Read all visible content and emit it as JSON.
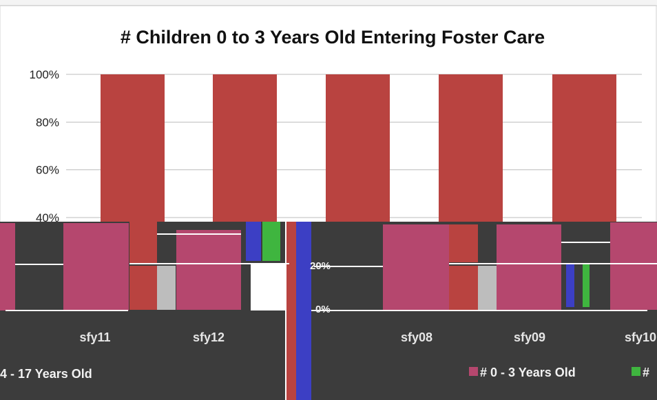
{
  "chart_data": {
    "type": "bar",
    "stacked": true,
    "percent_stacked": true,
    "title": "# Children 0 to 3 Years Old Entering Foster Care",
    "xlabel": "",
    "ylabel": "",
    "ylim": [
      0,
      100
    ],
    "y_ticks": [
      "100%",
      "80%",
      "60%",
      "40%"
    ],
    "grid": true,
    "series_colors": [
      "#b94340",
      "#b5476e",
      "#3fb53f"
    ],
    "main_bars": [
      100,
      100,
      100,
      100,
      100
    ],
    "glitch_layer": {
      "left_categories": [
        "sfy11",
        "sfy12"
      ],
      "right_categories": [
        "sfy08",
        "sfy09",
        "sfy10"
      ],
      "legend_left": "4 - 17 Years Old",
      "legend_right": [
        "# 0 - 3 Years Old",
        "#"
      ],
      "small_ticks": [
        "20%",
        "0%"
      ]
    }
  }
}
